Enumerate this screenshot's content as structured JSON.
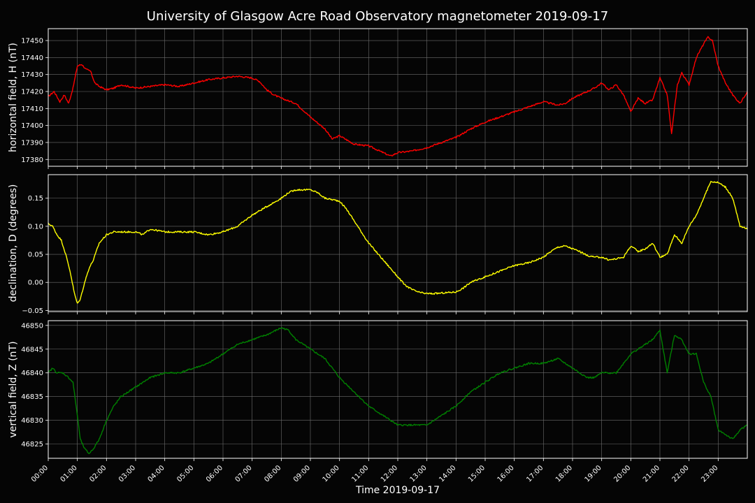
{
  "chart_data": {
    "type": "line",
    "title": "University of Glasgow Acre Road Observatory magnetometer 2019-09-17",
    "xlabel": "Time 2019-09-17",
    "xlim": [
      0,
      24
    ],
    "x_tick_labels": [
      "00:00",
      "01:00",
      "02:00",
      "03:00",
      "04:00",
      "05:00",
      "06:00",
      "07:00",
      "08:00",
      "09:00",
      "10:00",
      "11:00",
      "12:00",
      "13:00",
      "14:00",
      "15:00",
      "16:00",
      "17:00",
      "18:00",
      "19:00",
      "20:00",
      "21:00",
      "22:00",
      "23:00"
    ],
    "grid": true,
    "panels": [
      {
        "ylabel": "horizontal field, H (nT)",
        "ylim": [
          17376,
          17457
        ],
        "yticks": [
          17380,
          17390,
          17400,
          17410,
          17420,
          17430,
          17440,
          17450
        ],
        "color": "#ff0000",
        "series": [
          {
            "x": [
              0,
              0.2,
              0.4,
              0.55,
              0.7,
              0.85,
              1.0,
              1.15,
              1.3,
              1.45,
              1.6,
              1.75,
              2.0,
              2.25,
              2.5,
              3,
              3.5,
              4,
              4.5,
              5,
              5.5,
              6,
              6.5,
              7,
              7.25,
              7.5,
              7.75,
              8,
              8.5,
              9,
              9.5,
              9.75,
              10,
              10.5,
              11,
              11.25,
              11.5,
              11.75,
              12,
              12.5,
              13,
              13.5,
              14,
              14.5,
              15,
              15.5,
              16,
              16.5,
              17,
              17.5,
              17.75,
              18,
              18.25,
              18.5,
              18.75,
              19,
              19.25,
              19.5,
              19.75,
              20,
              20.25,
              20.5,
              20.75,
              21,
              21.25,
              21.4,
              21.5,
              21.6,
              21.75,
              22,
              22.25,
              22.5,
              22.65,
              22.8,
              23,
              23.25,
              23.5,
              23.75,
              24
            ],
            "y": [
              17417,
              17420,
              17414,
              17418,
              17413,
              17422,
              17435,
              17436,
              17433,
              17432,
              17425,
              17423,
              17421,
              17422,
              17424,
              17422,
              17423,
              17424,
              17423,
              17425,
              17427,
              17428,
              17429,
              17428,
              17426,
              17421,
              17418,
              17416,
              17413,
              17405,
              17398,
              17392,
              17394,
              17389,
              17388,
              17386,
              17384,
              17382,
              17384,
              17385,
              17387,
              17390,
              17393,
              17398,
              17402,
              17405,
              17408,
              17411,
              17414,
              17412,
              17413,
              17416,
              17418,
              17420,
              17422,
              17425,
              17421,
              17424,
              17418,
              17408,
              17416,
              17413,
              17415,
              17428,
              17418,
              17395,
              17410,
              17424,
              17431,
              17424,
              17440,
              17448,
              17452,
              17450,
              17435,
              17425,
              17418,
              17413,
              17420
            ]
          }
        ]
      },
      {
        "ylabel": "declination, D (degrees)",
        "ylim": [
          -0.052,
          0.192
        ],
        "yticks": [
          -0.05,
          0.0,
          0.05,
          0.1,
          0.15
        ],
        "tick_labels": [
          "−0.05",
          "0.00",
          "0.05",
          "0.10",
          "0.15"
        ],
        "color": "#ffff00",
        "series": [
          {
            "x": [
              0,
              0.15,
              0.3,
              0.45,
              0.6,
              0.75,
              0.9,
              1.0,
              1.1,
              1.25,
              1.4,
              1.55,
              1.75,
              2.0,
              2.25,
              2.5,
              2.75,
              3,
              3.25,
              3.5,
              4,
              4.5,
              5,
              5.5,
              6,
              6.5,
              7,
              7.5,
              8,
              8.25,
              8.5,
              9,
              9.25,
              9.5,
              10,
              10.25,
              10.5,
              10.75,
              11,
              11.25,
              11.5,
              11.75,
              12,
              12.25,
              12.5,
              12.75,
              13,
              13.25,
              13.5,
              14,
              14.25,
              14.5,
              15,
              15.5,
              16,
              16.5,
              17,
              17.25,
              17.5,
              17.75,
              18,
              18.25,
              18.5,
              18.75,
              19,
              19.25,
              19.5,
              19.75,
              20,
              20.25,
              20.5,
              20.75,
              21,
              21.25,
              21.5,
              21.75,
              22,
              22.25,
              22.5,
              22.75,
              23,
              23.25,
              23.5,
              23.75,
              24
            ],
            "y": [
              0.105,
              0.1,
              0.085,
              0.075,
              0.05,
              0.02,
              -0.02,
              -0.038,
              -0.03,
              0.0,
              0.025,
              0.04,
              0.07,
              0.085,
              0.09,
              0.09,
              0.09,
              0.09,
              0.085,
              0.095,
              0.09,
              0.09,
              0.09,
              0.085,
              0.09,
              0.1,
              0.12,
              0.135,
              0.15,
              0.16,
              0.165,
              0.165,
              0.16,
              0.15,
              0.145,
              0.13,
              0.11,
              0.09,
              0.07,
              0.055,
              0.04,
              0.025,
              0.01,
              -0.005,
              -0.013,
              -0.018,
              -0.02,
              -0.02,
              -0.019,
              -0.017,
              -0.01,
              0.0,
              0.01,
              0.02,
              0.03,
              0.035,
              0.045,
              0.055,
              0.063,
              0.065,
              0.06,
              0.055,
              0.048,
              0.045,
              0.045,
              0.04,
              0.042,
              0.045,
              0.065,
              0.055,
              0.06,
              0.07,
              0.045,
              0.05,
              0.085,
              0.07,
              0.1,
              0.12,
              0.15,
              0.18,
              0.178,
              0.17,
              0.15,
              0.1,
              0.095
            ]
          }
        ]
      },
      {
        "ylabel": "vertical field, Z (nT)",
        "ylim": [
          46822,
          46851
        ],
        "yticks": [
          46825,
          46830,
          46835,
          46840,
          46845,
          46850
        ],
        "color": "#008000",
        "series": [
          {
            "x": [
              0,
              0.15,
              0.3,
              0.5,
              0.7,
              0.85,
              1.0,
              1.1,
              1.25,
              1.4,
              1.55,
              1.75,
              2.0,
              2.25,
              2.5,
              3,
              3.5,
              4,
              4.5,
              5,
              5.5,
              6,
              6.5,
              7,
              7.5,
              8,
              8.25,
              8.5,
              8.75,
              9,
              9.5,
              10,
              10.5,
              11,
              11.5,
              12,
              12.5,
              13,
              13.5,
              14,
              14.5,
              15,
              15.5,
              16,
              16.5,
              17,
              17.5,
              18,
              18.25,
              18.5,
              18.75,
              19,
              19.5,
              20,
              20.25,
              20.5,
              20.75,
              21,
              21.25,
              21.5,
              21.75,
              22,
              22.25,
              22.5,
              22.75,
              23,
              23.25,
              23.5,
              23.75,
              24
            ],
            "y": [
              46840,
              46841,
              46840,
              46840,
              46839,
              46838,
              46831,
              46826,
              46824,
              46823,
              46824,
              46826,
              46830,
              46833,
              46835,
              46837,
              46839,
              46840,
              46840,
              46841,
              46842,
              46844,
              46846,
              46847,
              46848,
              46849.5,
              46849,
              46847,
              46846,
              46845,
              46843,
              46839,
              46836,
              46833,
              46831,
              46829,
              46829,
              46829,
              46831,
              46833,
              46836,
              46838,
              46840,
              46841,
              46842,
              46842,
              46843,
              46841,
              46840,
              46839,
              46839,
              46840,
              46840,
              46844,
              46845,
              46846,
              46847,
              46849,
              46840,
              46848,
              46847,
              46844,
              46844,
              46838,
              46835,
              46828,
              46827,
              46826,
              46828,
              46829
            ]
          }
        ]
      }
    ]
  }
}
